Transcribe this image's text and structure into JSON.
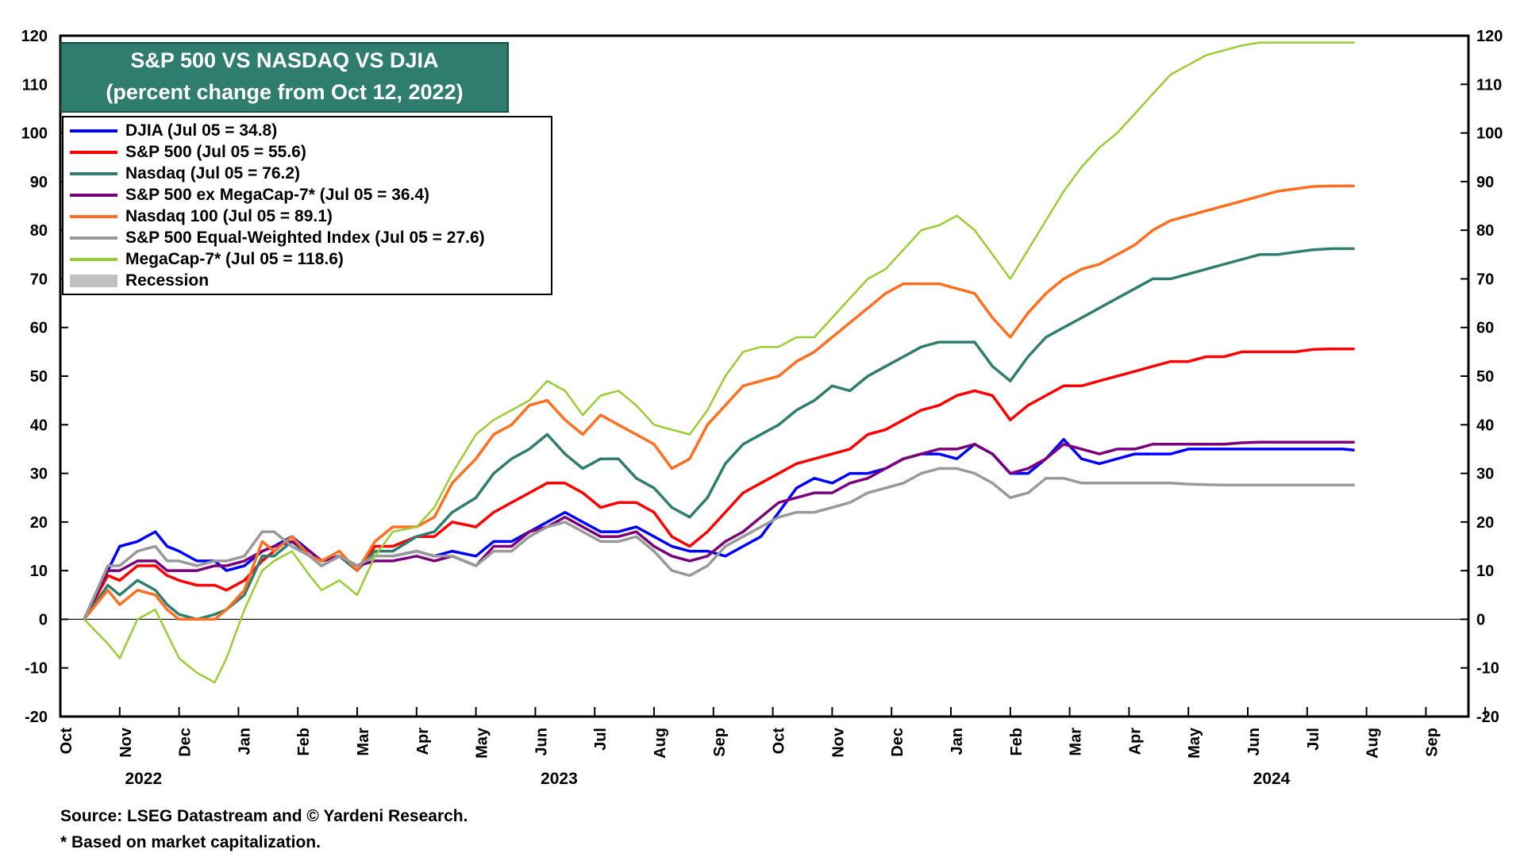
{
  "chart_data": {
    "type": "line",
    "title": "S&P 500 VS NASDAQ VS DJIA",
    "subtitle": "(percent change from Oct 12, 2022)",
    "ylim": [
      -20,
      120
    ],
    "y_ticks": [
      -20,
      -10,
      0,
      10,
      20,
      30,
      40,
      50,
      60,
      70,
      80,
      90,
      100,
      110,
      120
    ],
    "x_months": [
      "Oct",
      "Nov",
      "Dec",
      "Jan",
      "Feb",
      "Mar",
      "Apr",
      "May",
      "Jun",
      "Jul",
      "Aug",
      "Sep",
      "Oct",
      "Nov",
      "Dec",
      "Jan",
      "Feb",
      "Mar",
      "Apr",
      "May",
      "Jun",
      "Jul",
      "Aug",
      "Sep"
    ],
    "x_years": [
      {
        "label": "2022",
        "month_index": 1
      },
      {
        "label": "2023",
        "month_index": 8
      },
      {
        "label": "2024",
        "month_index": 20
      }
    ],
    "x_data_months": [
      0.4,
      0.8,
      1.0,
      1.3,
      1.6,
      1.8,
      2.0,
      2.3,
      2.6,
      2.8,
      3.1,
      3.4,
      3.6,
      3.9,
      4.2,
      4.4,
      4.7,
      5.0,
      5.3,
      5.6,
      6.0,
      6.3,
      6.6,
      7.0,
      7.3,
      7.6,
      7.9,
      8.2,
      8.5,
      8.8,
      9.1,
      9.4,
      9.7,
      10.0,
      10.3,
      10.6,
      10.9,
      11.2,
      11.5,
      11.8,
      12.1,
      12.4,
      12.7,
      13.0,
      13.3,
      13.6,
      13.9,
      14.2,
      14.5,
      14.8,
      15.1,
      15.4,
      15.7,
      16.0,
      16.3,
      16.6,
      16.9,
      17.2,
      17.5,
      17.8,
      18.1,
      18.4,
      18.7,
      19.0,
      19.3,
      19.6,
      19.9,
      20.2,
      20.5,
      20.8,
      21.1,
      21.4,
      21.6,
      21.8
    ],
    "series": [
      {
        "name": "DJIA",
        "label": "DJIA (Jul 05 = 34.8)",
        "color": "#0000ff",
        "width": 3.5,
        "values": [
          0,
          10,
          15,
          16,
          18,
          15,
          14,
          12,
          12,
          10,
          11,
          14,
          15,
          17,
          14,
          12,
          13,
          11,
          13,
          13,
          14,
          13,
          14,
          13,
          16,
          16,
          18,
          20,
          22,
          20,
          18,
          18,
          19,
          17,
          15,
          14,
          14,
          13,
          15,
          17,
          22,
          27,
          29,
          28,
          30,
          30,
          31,
          33,
          34,
          34,
          33,
          36,
          34,
          30,
          30,
          33,
          37,
          33,
          32,
          33,
          34,
          34,
          34,
          35,
          35,
          35,
          35,
          35,
          35,
          35,
          35,
          35,
          35,
          34.8
        ]
      },
      {
        "name": "S&P 500",
        "label": "S&P 500 (Jul 05 = 55.6)",
        "color": "#ff0000",
        "width": 3.5,
        "values": [
          0,
          9,
          8,
          11,
          11,
          9,
          8,
          7,
          7,
          6,
          8,
          12,
          14,
          17,
          13,
          11,
          13,
          10,
          15,
          15,
          17,
          17,
          20,
          19,
          22,
          24,
          26,
          28,
          28,
          26,
          23,
          24,
          24,
          22,
          17,
          15,
          18,
          22,
          26,
          28,
          30,
          32,
          33,
          34,
          35,
          38,
          39,
          41,
          43,
          44,
          46,
          47,
          46,
          41,
          44,
          46,
          48,
          48,
          49,
          50,
          51,
          52,
          53,
          53,
          54,
          54,
          55,
          55,
          55,
          55,
          55.5,
          55.6,
          55.6,
          55.6
        ]
      },
      {
        "name": "Nasdaq",
        "label": "Nasdaq (Jul 05 = 76.2)",
        "color": "#2e7d6e",
        "width": 3.5,
        "values": [
          0,
          7,
          5,
          8,
          6,
          3,
          1,
          0,
          1,
          2,
          5,
          13,
          13,
          16,
          13,
          11,
          13,
          10,
          14,
          14,
          17,
          18,
          22,
          25,
          30,
          33,
          35,
          38,
          34,
          31,
          33,
          33,
          29,
          27,
          23,
          21,
          25,
          32,
          36,
          38,
          40,
          43,
          45,
          48,
          47,
          50,
          52,
          54,
          56,
          57,
          57,
          57,
          52,
          49,
          54,
          58,
          60,
          62,
          64,
          66,
          68,
          70,
          70,
          71,
          72,
          73,
          74,
          75,
          75,
          75.5,
          76,
          76.2,
          76.2,
          76.2
        ]
      },
      {
        "name": "S&P 500 ex MegaCap-7*",
        "label": "S&P 500 ex MegaCap-7* (Jul 05 = 36.4)",
        "color": "#7b007b",
        "width": 3.5,
        "values": [
          0,
          10,
          10,
          12,
          12,
          10,
          10,
          10,
          11,
          11,
          12,
          14,
          15,
          16,
          14,
          12,
          13,
          11,
          12,
          12,
          13,
          12,
          13,
          11,
          15,
          15,
          18,
          19,
          21,
          19,
          17,
          17,
          18,
          15,
          13,
          12,
          13,
          16,
          18,
          21,
          24,
          25,
          26,
          26,
          28,
          29,
          31,
          33,
          34,
          35,
          35,
          36,
          34,
          30,
          31,
          33,
          36,
          35,
          34,
          35,
          35,
          36,
          36,
          36,
          36,
          36,
          36.3,
          36.4,
          36.4,
          36.4,
          36.4,
          36.4,
          36.4,
          36.4
        ]
      },
      {
        "name": "Nasdaq 100",
        "label": "Nasdaq 100 (Jul 05 = 89.1)",
        "color": "#ff6f1f",
        "width": 3.5,
        "values": [
          0,
          6,
          3,
          6,
          5,
          2,
          0,
          0,
          0,
          2,
          6,
          16,
          14,
          17,
          13,
          12,
          14,
          10,
          16,
          19,
          19,
          21,
          28,
          33,
          38,
          40,
          44,
          45,
          41,
          38,
          42,
          40,
          38,
          36,
          31,
          33,
          40,
          44,
          48,
          49,
          50,
          53,
          55,
          58,
          61,
          64,
          67,
          69,
          69,
          69,
          68,
          67,
          62,
          58,
          63,
          67,
          70,
          72,
          73,
          75,
          77,
          80,
          82,
          83,
          84,
          85,
          86,
          87,
          88,
          88.5,
          89,
          89.1,
          89.1,
          89.1
        ]
      },
      {
        "name": "S&P 500 Equal-Weighted Index",
        "label": "S&P 500 Equal-Weighted Index (Jul 05 = 27.6)",
        "color": "#999999",
        "width": 3.5,
        "values": [
          0,
          11,
          11,
          14,
          15,
          12,
          12,
          11,
          12,
          12,
          13,
          18,
          18,
          15,
          13,
          11,
          13,
          11,
          13,
          13,
          14,
          13,
          13,
          11,
          14,
          14,
          17,
          19,
          20,
          18,
          16,
          16,
          17,
          14,
          10,
          9,
          11,
          15,
          17,
          19,
          21,
          22,
          22,
          23,
          24,
          26,
          27,
          28,
          30,
          31,
          31,
          30,
          28,
          25,
          26,
          29,
          29,
          28,
          28,
          28,
          28,
          28,
          28,
          27.8,
          27.7,
          27.6,
          27.6,
          27.6,
          27.6,
          27.6,
          27.6,
          27.6,
          27.6,
          27.6
        ]
      },
      {
        "name": "MegaCap-7*",
        "label": "MegaCap-7* (Jul 05 = 118.6)",
        "color": "#9acd32",
        "width": 2.5,
        "values": [
          0,
          -5,
          -8,
          0,
          2,
          -3,
          -8,
          -11,
          -13,
          -8,
          2,
          10,
          12,
          14,
          9,
          6,
          8,
          5,
          13,
          18,
          19,
          23,
          30,
          38,
          41,
          43,
          45,
          49,
          47,
          42,
          46,
          47,
          44,
          40,
          39,
          38,
          43,
          50,
          55,
          56,
          56,
          58,
          58,
          62,
          66,
          70,
          72,
          76,
          80,
          81,
          83,
          80,
          75,
          70,
          76,
          82,
          88,
          93,
          97,
          100,
          104,
          108,
          112,
          114,
          116,
          117,
          118,
          118.6,
          118.6,
          118.6,
          118.6,
          118.6,
          118.6,
          118.6
        ]
      }
    ],
    "legend": {
      "placement": "top-left",
      "recession_label": "Recession",
      "recession_color": "#c0c0c0"
    }
  },
  "footnotes": {
    "source": "Source: LSEG Datastream and © Yardeni Research.",
    "note": "* Based on market capitalization."
  }
}
